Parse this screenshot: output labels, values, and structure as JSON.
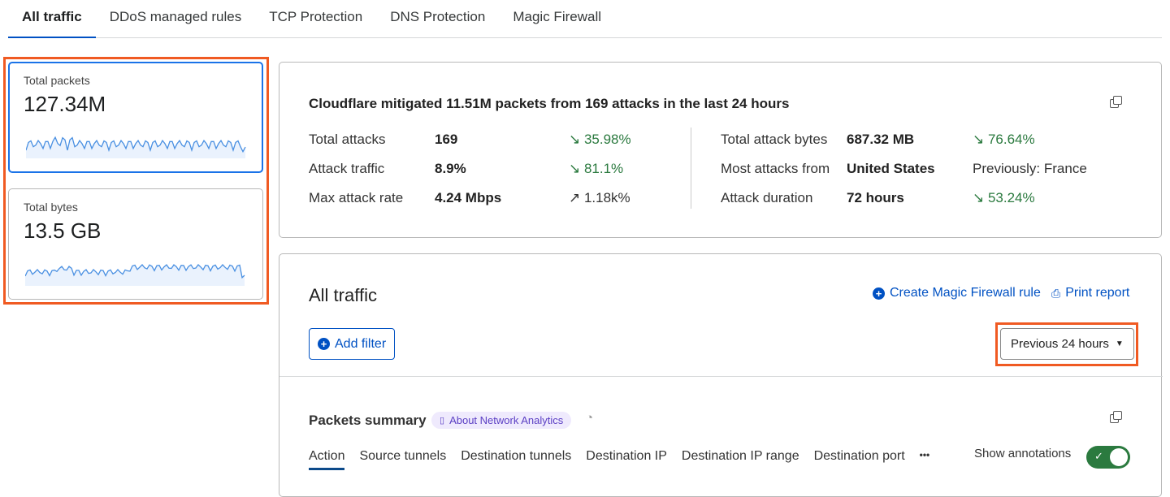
{
  "tabs": [
    "All traffic",
    "DDoS managed rules",
    "TCP Protection",
    "DNS Protection",
    "Magic Firewall"
  ],
  "metrics": [
    {
      "label": "Total packets",
      "value": "127.34M"
    },
    {
      "label": "Total bytes",
      "value": "13.5 GB"
    }
  ],
  "summary": {
    "headline": "Cloudflare mitigated 11.51M packets from 169 attacks in the last 24 hours",
    "left": [
      {
        "k": "Total attacks",
        "v": "169",
        "c": "↘ 35.98%"
      },
      {
        "k": "Attack traffic",
        "v": "8.9%",
        "c": "↘ 81.1%"
      },
      {
        "k": "Max attack rate",
        "v": "4.24 Mbps",
        "c": "↗ 1.18k%"
      }
    ],
    "right": [
      {
        "k": "Total attack bytes",
        "v": "687.32 MB",
        "c": "↘ 76.64%"
      },
      {
        "k": "Most attacks from",
        "v": "United States",
        "c": "Previously: France"
      },
      {
        "k": "Attack duration",
        "v": "72 hours",
        "c": "↘ 53.24%"
      }
    ]
  },
  "traffic": {
    "title": "All traffic",
    "create_rule": "Create Magic Firewall rule",
    "print": "Print report",
    "add_filter": "Add filter",
    "time_range": "Previous 24 hours",
    "packets_summary": "Packets summary",
    "about": "About Network Analytics",
    "subtabs": [
      "Action",
      "Source tunnels",
      "Destination tunnels",
      "Destination IP",
      "Destination IP range",
      "Destination port"
    ],
    "more": "•••",
    "show_annotations": "Show annotations",
    "annotations_on": true
  },
  "colors": {
    "accent": "#0051c3",
    "highlight": "#f05a22",
    "positive": "#2b7a3f",
    "spark": "#4a90e2"
  }
}
